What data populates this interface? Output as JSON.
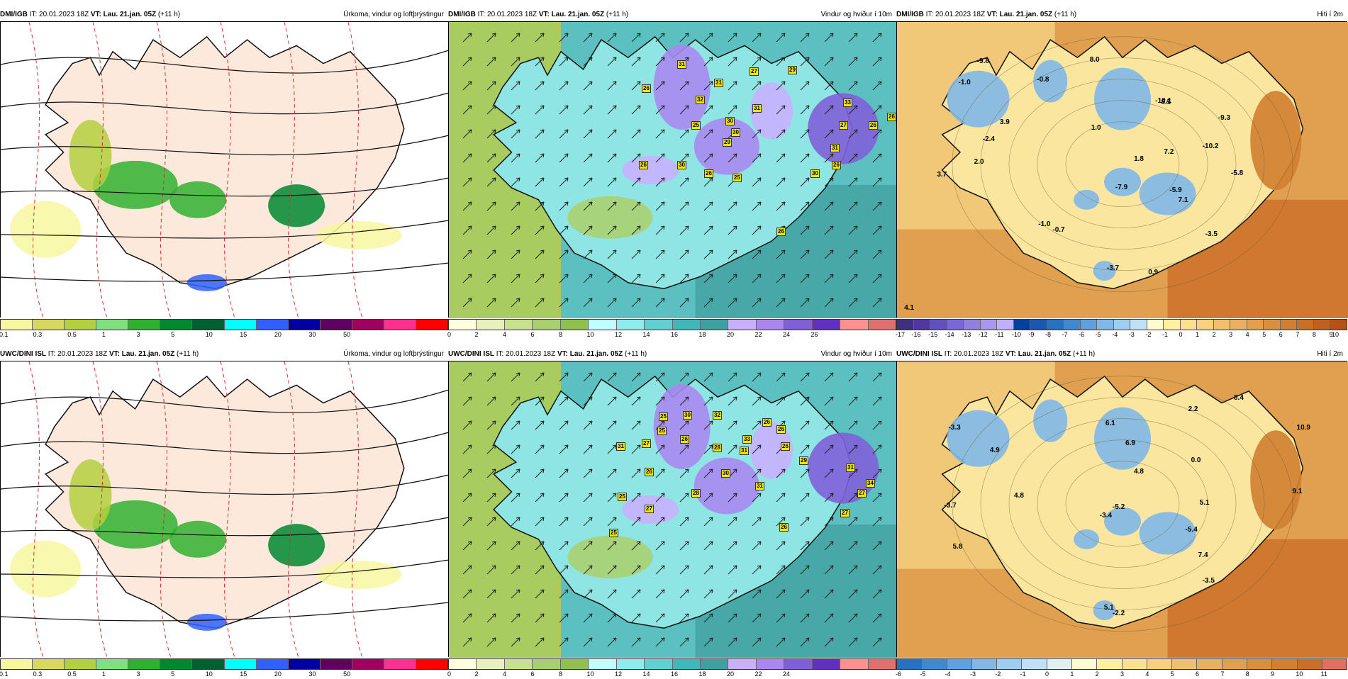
{
  "panels": [
    {
      "model": "DMI/IGB",
      "it": "IT: 20.01.2023 18Z",
      "vt": "VT: Lau. 21.jan. 05Z",
      "lead": "(+11 h)",
      "title": "Úrkoma, vindur og loftþrýstingur",
      "colors": [
        "#f7f7a0",
        "#d8d860",
        "#b4d040",
        "#80e080",
        "#30b030",
        "#008830",
        "#006030",
        "#00ffff",
        "#3060ff",
        "#0000a0",
        "#600060",
        "#a00060",
        "#ff3090",
        "#ff0000"
      ],
      "ticks": [
        "0.1",
        "0.3",
        "0.5",
        "1",
        "3",
        "5",
        "10",
        "15",
        "20",
        "30",
        "50"
      ],
      "labels": []
    },
    {
      "model": "DMI/IGB",
      "it": "IT: 20.01.2023 18Z",
      "vt": "VT: Lau. 21.jan. 05Z",
      "lead": "(+11 h)",
      "title": "Vindur og hviður í 10m",
      "colors": [
        "#ffffe0",
        "#e8f0c0",
        "#c8e090",
        "#a8d070",
        "#90c050",
        "#c0ffff",
        "#90ecec",
        "#60d0d0",
        "#40b8b8",
        "#40a0a0",
        "#c8b0ff",
        "#a888f0",
        "#8060d8",
        "#6030c0",
        "#ff9090",
        "#e07070"
      ],
      "ticks": [
        "0",
        "2",
        "4",
        "6",
        "8",
        "10",
        "12",
        "14",
        "16",
        "18",
        "20",
        "22",
        "24",
        "26"
      ],
      "labels": [
        "31",
        "26",
        "32",
        "31",
        "29",
        "27",
        "33",
        "26",
        "25",
        "30",
        "31",
        "30",
        "26",
        "29",
        "26",
        "30",
        "25",
        "27",
        "31",
        "26",
        "30",
        "26",
        "26"
      ]
    },
    {
      "model": "DMI/IGB",
      "it": "IT: 20.01.2023 18Z",
      "vt": "VT: Lau. 21.jan. 05Z",
      "lead": "(+11 h)",
      "title": "Hiti í 2m",
      "colors": [
        "#403080",
        "#5038a0",
        "#6050c0",
        "#7868d8",
        "#9080e0",
        "#a898f0",
        "#c0b0ff",
        "#0040a0",
        "#1858b0",
        "#2870c0",
        "#4088d0",
        "#60a0e0",
        "#80b8e8",
        "#a0cdf0",
        "#c0e0f8",
        "#fffbd0",
        "#fff0a0",
        "#fae090",
        "#f8d080",
        "#f0c070",
        "#e8b060",
        "#e0a050",
        "#d89040",
        "#d08030",
        "#c87028",
        "#c06020",
        "#b85018"
      ],
      "ticks": [
        "-17",
        "-16",
        "-15",
        "-14",
        "-13",
        "-12",
        "-11",
        "-10",
        "-9",
        "-8",
        "-7",
        "-6",
        "-5",
        "-4",
        "-3",
        "-2",
        "-1",
        "0",
        "1",
        "2",
        "3",
        "4",
        "5",
        "6",
        "7",
        "8",
        "9",
        "10"
      ],
      "labels": [
        "-9.8",
        "-0.8",
        "-1.0",
        "-10.1",
        "8.0",
        "8.5",
        "3.9",
        "1.0",
        "-9.3",
        "-2.4",
        "7.2",
        "2.0",
        "1.8",
        "-10.2",
        "3.7",
        "-5.8",
        "-7.9",
        "-5.9",
        "7.1",
        "-1.0",
        "-0.7",
        "-3.5",
        "-3.7",
        "0.9",
        "4.1"
      ]
    },
    {
      "model": "UWC/DINI ISL",
      "it": "IT: 20.01.2023 18Z",
      "vt": "VT: Lau. 21.jan. 05Z",
      "lead": "(+11 h)",
      "title": "Úrkoma, vindur og loftþrýstingur",
      "colors": [
        "#f7f7a0",
        "#d8d860",
        "#b4d040",
        "#80e080",
        "#30b030",
        "#008830",
        "#006030",
        "#00ffff",
        "#3060ff",
        "#0000a0",
        "#600060",
        "#a00060",
        "#ff3090",
        "#ff0000"
      ],
      "ticks": [
        "0.1",
        "0.3",
        "0.5",
        "1",
        "3",
        "5",
        "10",
        "15",
        "20",
        "30",
        "50"
      ],
      "labels": []
    },
    {
      "model": "UWC/DINI ISL",
      "it": "IT: 20.01.2023 18Z",
      "vt": "VT: Lau. 21.jan. 05Z",
      "lead": "(+11 h)",
      "title": "Vindur og hviður í 10m",
      "colors": [
        "#ffffe0",
        "#e8f0c0",
        "#c8e090",
        "#a8d070",
        "#90c050",
        "#c0ffff",
        "#90ecec",
        "#60d0d0",
        "#40b8b8",
        "#40a0a0",
        "#c8b0ff",
        "#a888f0",
        "#8060d8",
        "#6030c0",
        "#ff9090",
        "#e07070"
      ],
      "ticks": [
        "0",
        "2",
        "4",
        "6",
        "8",
        "10",
        "12",
        "14",
        "16",
        "18",
        "20",
        "22",
        "24"
      ],
      "labels": [
        "25",
        "30",
        "32",
        "25",
        "26",
        "26",
        "27",
        "26",
        "33",
        "31",
        "28",
        "31",
        "26",
        "29",
        "26",
        "30",
        "31",
        "25",
        "28",
        "31",
        "27",
        "34",
        "27",
        "27",
        "25",
        "26"
      ]
    },
    {
      "model": "UWC/DINI ISL",
      "it": "IT: 20.01.2023 18Z",
      "vt": "VT: Lau. 21.jan. 05Z",
      "lead": "(+11 h)",
      "title": "Hiti í 2m",
      "colors": [
        "#2870c0",
        "#4088d0",
        "#60a0e0",
        "#80b8e8",
        "#a0cdf0",
        "#c0e0f8",
        "#e0f0f0",
        "#fffbd0",
        "#fff0a0",
        "#fae090",
        "#f8d080",
        "#f0c070",
        "#e8b060",
        "#e0a050",
        "#d89040",
        "#d08030",
        "#c87028",
        "#e07060"
      ],
      "ticks": [
        "-6",
        "-5",
        "-4",
        "-3",
        "-2",
        "-1",
        "0",
        "1",
        "2",
        "3",
        "4",
        "5",
        "6",
        "7",
        "8",
        "9",
        "10",
        "11"
      ],
      "labels": [
        "8.4",
        "-3.3",
        "6.1",
        "2.2",
        "10.9",
        "4.9",
        "6.9",
        "0.0",
        "4.8",
        "9.1",
        "4.8",
        "-3.7",
        "5.1",
        "-3.4",
        "-5.2",
        "-5.4",
        "7.4",
        "5.8",
        "-3.5",
        "5.1",
        "-2.2"
      ]
    }
  ]
}
